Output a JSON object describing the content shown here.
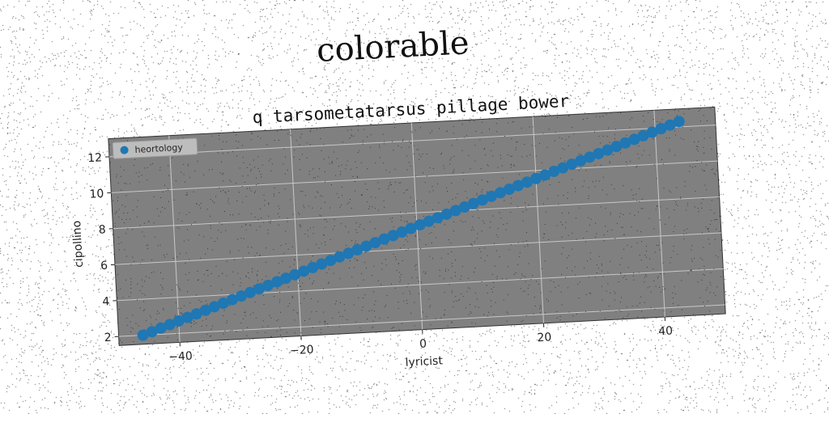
{
  "suptitle": "colorable",
  "chart_data": {
    "type": "scatter",
    "title": "q tarsometatarsus pillage bower",
    "xlabel": "lyricist",
    "ylabel": "cipollino",
    "xlim": [
      -50,
      50
    ],
    "ylim": [
      1.5,
      13.0
    ],
    "xticks": [
      -40,
      -20,
      0,
      20,
      40
    ],
    "xtick_labels": [
      "−40",
      "−20",
      "0",
      "20",
      "40"
    ],
    "yticks": [
      2,
      4,
      6,
      8,
      10,
      12
    ],
    "ytick_labels": [
      "2",
      "4",
      "6",
      "8",
      "10",
      "12"
    ],
    "grid": true,
    "legend_position": "top-left",
    "background_color": "#808080",
    "series": [
      {
        "name": "heortology",
        "color": "#1f77b4",
        "x_start": -46.0,
        "x_end": 44.0,
        "n_points": 61,
        "y_start": 2.0,
        "y_end": 12.3
      }
    ]
  }
}
